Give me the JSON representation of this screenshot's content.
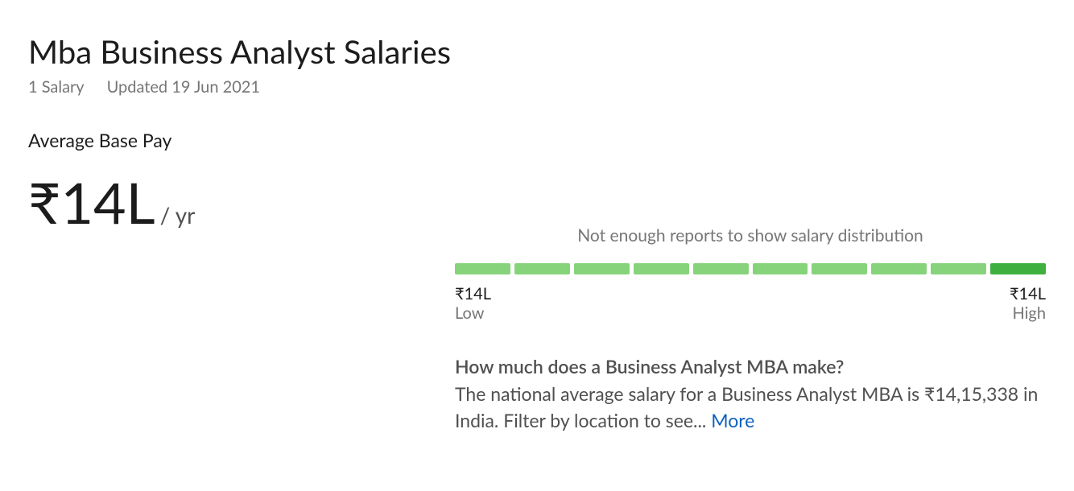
{
  "header": {
    "title": "Mba Business Analyst Salaries",
    "salary_count": "1 Salary",
    "updated": "Updated 19 Jun 2021"
  },
  "base_pay": {
    "label": "Average Base Pay",
    "amount": "₹14L",
    "period": "/ yr"
  },
  "distribution": {
    "message": "Not enough reports to show salary distribution",
    "bar_count": 10,
    "bar_color": "#87d37c",
    "last_bar_color": "#3fb03f",
    "low_value": "₹14L",
    "low_label": "Low",
    "high_value": "₹14L",
    "high_label": "High"
  },
  "faq": {
    "question": "How much does a Business Analyst MBA make?",
    "answer": "The national average salary for a Business Analyst MBA is ₹14,15,338 in India. Filter by location to see... ",
    "more_label": "More"
  }
}
